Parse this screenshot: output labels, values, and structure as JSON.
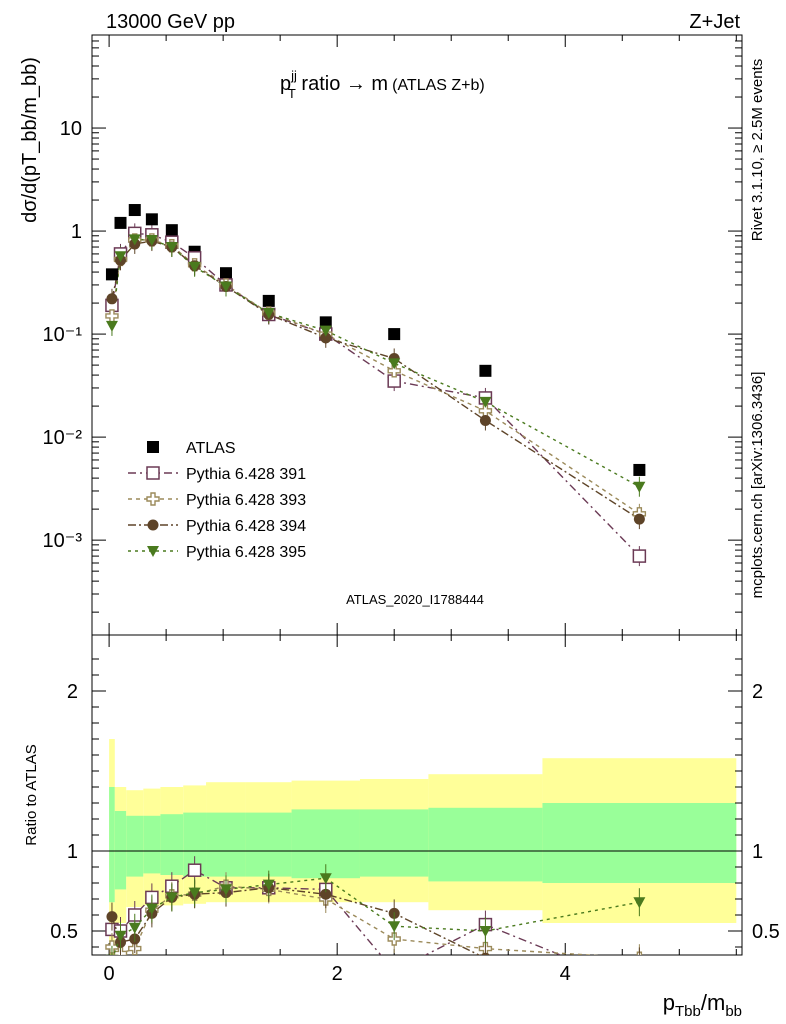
{
  "header": {
    "left": "13000 GeV pp",
    "right": "Z+Jet"
  },
  "plot_title": {
    "main": "p",
    "sup": "jj",
    "sub": "T",
    "rest": " ratio → m",
    "small": "(ATLAS Z+b)"
  },
  "y_axis_label": "dσ/d(pT_bb/m_bb)",
  "side_labels": {
    "rivet": "Rivet 3.1.10, ≥ 2.5M events",
    "mcplots": "mcplots.cern.ch [arXiv:1306.3436]"
  },
  "analysis_id": "ATLAS_2020_I1788444",
  "x_label": {
    "p": "p",
    "sub": "Tbb",
    "slash": "/m",
    "sub2": "bb"
  },
  "ratio_label": "Ratio to ATLAS",
  "legend": [
    {
      "name": "ATLAS",
      "color": "#000000",
      "marker": "filled-square"
    },
    {
      "name": "Pythia 6.428 391",
      "color": "#6b3a55",
      "marker": "open-square"
    },
    {
      "name": "Pythia 6.428 393",
      "color": "#9b8a5a",
      "marker": "open-cross"
    },
    {
      "name": "Pythia 6.428 394",
      "color": "#5e4428",
      "marker": "filled-circle"
    },
    {
      "name": "Pythia 6.428 395",
      "color": "#4a7a1e",
      "marker": "filled-triangle-down"
    }
  ],
  "chart_data": {
    "type": "scatter",
    "x_scale": "linear",
    "xlim": [
      -0.15,
      5.55
    ],
    "top_panel": {
      "y_scale": "log",
      "ylim": [
        0.00012,
        80
      ],
      "yticks": [
        "10⁻³",
        "10⁻²",
        "10⁻¹",
        "1",
        "10"
      ]
    },
    "ratio_panel": {
      "ylim": [
        0.35,
        2.35
      ],
      "yticks": [
        "0.5",
        "1",
        "2"
      ],
      "band_edges": [
        0.0,
        0.05,
        0.15,
        0.3,
        0.45,
        0.65,
        0.85,
        1.2,
        1.6,
        2.2,
        2.8,
        3.8,
        5.5
      ],
      "band_green_lo": [
        0.68,
        0.76,
        0.84,
        0.86,
        0.85,
        0.84,
        0.84,
        0.84,
        0.83,
        0.84,
        0.81,
        0.8
      ],
      "band_green_hi": [
        1.4,
        1.25,
        1.22,
        1.22,
        1.23,
        1.24,
        1.24,
        1.24,
        1.26,
        1.26,
        1.27,
        1.3
      ],
      "band_yellow_lo": [
        0.35,
        0.55,
        0.65,
        0.66,
        0.66,
        0.67,
        0.68,
        0.68,
        0.68,
        0.68,
        0.63,
        0.55
      ],
      "band_yellow_hi": [
        1.7,
        1.4,
        1.38,
        1.39,
        1.4,
        1.41,
        1.43,
        1.43,
        1.44,
        1.45,
        1.48,
        1.58
      ]
    },
    "series": [
      {
        "name": "ATLAS",
        "x": [
          0.025,
          0.1,
          0.225,
          0.375,
          0.55,
          0.75,
          1.025,
          1.4,
          1.9,
          2.5,
          3.3,
          4.65
        ],
        "y": [
          0.38,
          1.2,
          1.6,
          1.3,
          1.02,
          0.63,
          0.39,
          0.21,
          0.13,
          0.1,
          0.044,
          0.0048
        ]
      },
      {
        "name": "Pythia 6.428 391",
        "x": [
          0.025,
          0.1,
          0.225,
          0.375,
          0.55,
          0.75,
          1.025,
          1.4,
          1.9,
          2.5,
          3.3,
          4.65
        ],
        "y": [
          0.19,
          0.6,
          0.95,
          0.92,
          0.78,
          0.55,
          0.3,
          0.155,
          0.1,
          0.035,
          0.024,
          0.0007
        ],
        "ratio": [
          0.51,
          0.5,
          0.6,
          0.71,
          0.78,
          0.88,
          0.77,
          0.77,
          0.76,
          0.25,
          0.54,
          0.15
        ]
      },
      {
        "name": "Pythia 6.428 393",
        "x": [
          0.025,
          0.1,
          0.225,
          0.375,
          0.55,
          0.75,
          1.025,
          1.4,
          1.9,
          2.5,
          3.3,
          4.65
        ],
        "y": [
          0.15,
          0.53,
          0.82,
          0.82,
          0.72,
          0.47,
          0.3,
          0.16,
          0.1,
          0.044,
          0.018,
          0.0018
        ],
        "ratio": [
          0.4,
          0.36,
          0.39,
          0.63,
          0.72,
          0.73,
          0.78,
          0.76,
          0.7,
          0.45,
          0.39,
          0.33
        ]
      },
      {
        "name": "Pythia 6.428 394",
        "x": [
          0.025,
          0.1,
          0.225,
          0.375,
          0.55,
          0.75,
          1.025,
          1.4,
          1.9,
          2.5,
          3.3,
          4.65
        ],
        "y": [
          0.22,
          0.52,
          0.75,
          0.8,
          0.7,
          0.46,
          0.29,
          0.155,
          0.092,
          0.058,
          0.0145,
          0.0016
        ],
        "ratio": [
          0.59,
          0.43,
          0.45,
          0.61,
          0.71,
          0.73,
          0.74,
          0.77,
          0.73,
          0.61,
          0.33,
          0.31
        ]
      },
      {
        "name": "Pythia 6.428 395",
        "x": [
          0.025,
          0.1,
          0.225,
          0.375,
          0.55,
          0.75,
          1.025,
          1.4,
          1.9,
          2.5,
          3.3,
          4.65
        ],
        "y": [
          0.12,
          0.57,
          0.83,
          0.82,
          0.7,
          0.45,
          0.29,
          0.16,
          0.108,
          0.052,
          0.022,
          0.0033
        ],
        "ratio": [
          0.32,
          0.47,
          0.52,
          0.64,
          0.71,
          0.74,
          0.76,
          0.79,
          0.83,
          0.53,
          0.5,
          0.68
        ]
      }
    ]
  }
}
